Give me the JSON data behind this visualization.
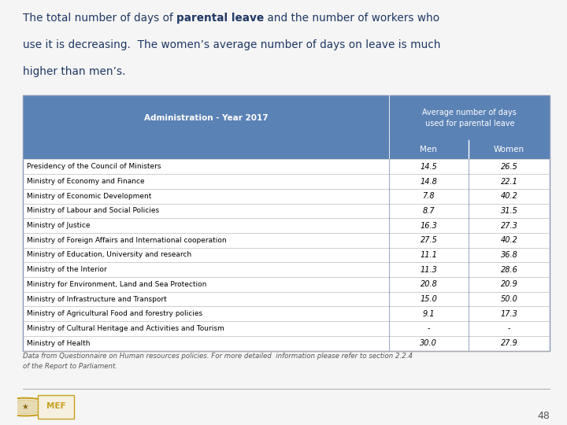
{
  "header_col1": "Administration - Year 2017",
  "header_col2_line1": "Average number of days",
  "header_col2_line2": "used for parental leave",
  "subheader_men": "Men",
  "subheader_women": "Women",
  "rows": [
    [
      "Presidency of the Council of Ministers",
      "14.5",
      "26.5"
    ],
    [
      "Ministry of Economy and Finance",
      "14.8",
      "22.1"
    ],
    [
      "Ministry of Economic Development",
      "7.8",
      "40.2"
    ],
    [
      "Ministry of Labour and Social Policies",
      "8.7",
      "31.5"
    ],
    [
      "Ministry of Justice",
      "16.3",
      "27.3"
    ],
    [
      "Ministry of Foreign Affairs and International cooperation",
      "27.5",
      "40.2"
    ],
    [
      "Ministry of Education, University and research",
      "11.1",
      "36.8"
    ],
    [
      "Ministry of the Interior",
      "11.3",
      "28.6"
    ],
    [
      "Ministry for Environment, Land and Sea Protection",
      "20.8",
      "20.9"
    ],
    [
      "Ministry of Infrastructure and Transport",
      "15.0",
      "50.0"
    ],
    [
      "Ministry of Agricultural Food and forestry policies",
      "9.1",
      "17.3"
    ],
    [
      "Ministry of Cultural Heritage and Activities and Tourism",
      "-",
      "-"
    ],
    [
      "Ministry of Health",
      "30.0",
      "27.9"
    ]
  ],
  "footnote_line1": "Data from Questionnaire on Human resources policies. For more detailed  information please refer to section 2.2.4",
  "footnote_line2": "of the Report to Parliament.",
  "page_number": "48",
  "header_bg_color": "#5B82B5",
  "header_text_color": "#FFFFFF",
  "row_text_color": "#000000",
  "title_color": "#1F3864",
  "table_border_color": "#8899BB",
  "bg_color": "#F5F5F5",
  "footnote_color": "#555555",
  "page_num_color": "#555555",
  "row_divider_color": "#BBBBBB",
  "col_divider_color": "#8899BB"
}
